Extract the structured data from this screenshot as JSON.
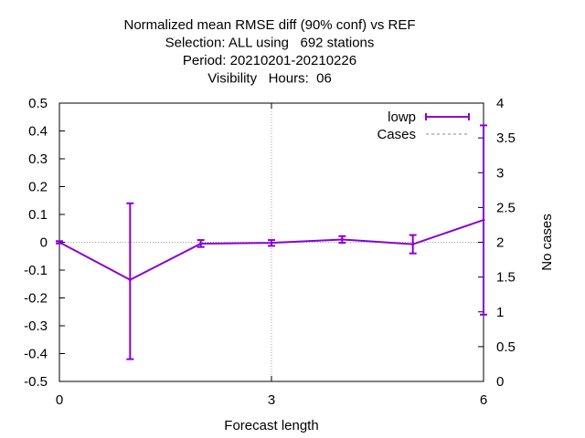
{
  "chart_data": {
    "type": "line",
    "title_lines": [
      "Normalized mean RMSE diff (90% conf) vs REF",
      "Selection: ALL using   692 stations",
      "Period: 20210201-20210226",
      "Visibility   Hours:  06"
    ],
    "xlabel": "Forecast length",
    "ylabel": "",
    "y2label": "No cases",
    "xlim": [
      0,
      6
    ],
    "ylim": [
      -0.5,
      0.5
    ],
    "y2lim": [
      0,
      4
    ],
    "xticks": [
      "0",
      "3",
      "6"
    ],
    "yticks": [
      "0.5",
      "0.4",
      "0.3",
      "0.2",
      "0.1",
      "0",
      "-0.1",
      "-0.2",
      "-0.3",
      "-0.4",
      "-0.5"
    ],
    "y2ticks": [
      "4",
      "3.5",
      "3",
      "2.5",
      "2",
      "1.5",
      "1",
      "0.5",
      "0"
    ],
    "grid": "dotted at x=3 and y=0",
    "legend_position": "top-right",
    "series": [
      {
        "name": "lowp",
        "color": "#8a00d4",
        "x": [
          0,
          1,
          2,
          3,
          4,
          5,
          6
        ],
        "y": [
          0.0,
          -0.135,
          -0.005,
          -0.002,
          0.01,
          -0.007,
          0.08
        ],
        "err_low": [
          -0.004,
          -0.42,
          -0.017,
          -0.013,
          -0.002,
          -0.04,
          -0.26
        ],
        "err_high": [
          0.004,
          0.14,
          0.008,
          0.008,
          0.022,
          0.026,
          0.42
        ]
      },
      {
        "name": "Cases",
        "color": "#8a8a8a",
        "x": [],
        "y": []
      }
    ]
  }
}
